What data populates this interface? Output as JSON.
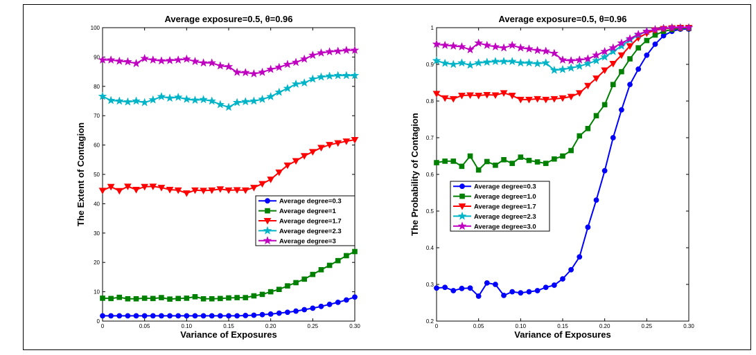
{
  "chart_data": [
    {
      "type": "line",
      "title": "Average exposure=0.5, θ=0.96",
      "xlabel": "Variance of Exposures",
      "ylabel": "The Extent of Contagion",
      "xlim": [
        0,
        0.3
      ],
      "ylim": [
        0,
        100
      ],
      "xticks": [
        "0",
        "0.05",
        "0.10",
        "0.15",
        "0.20",
        "0.25",
        "0.30"
      ],
      "yticks": [
        "0",
        "10",
        "20",
        "30",
        "40",
        "50",
        "60",
        "70",
        "80",
        "90",
        "100"
      ],
      "legend_position": "right",
      "x": [
        0,
        0.01,
        0.02,
        0.03,
        0.04,
        0.05,
        0.06,
        0.07,
        0.08,
        0.09,
        0.1,
        0.11,
        0.12,
        0.13,
        0.14,
        0.15,
        0.16,
        0.17,
        0.18,
        0.19,
        0.2,
        0.21,
        0.22,
        0.23,
        0.24,
        0.25,
        0.26,
        0.27,
        0.28,
        0.29,
        0.3
      ],
      "series": [
        {
          "name": "Average degree=0.3",
          "color": "#0000ff",
          "marker": "circle",
          "values": [
            1.8,
            1.8,
            1.8,
            1.8,
            1.8,
            1.8,
            1.8,
            1.8,
            1.8,
            1.8,
            1.8,
            1.8,
            1.8,
            1.8,
            1.8,
            1.8,
            1.8,
            1.9,
            2.0,
            2.2,
            2.4,
            2.7,
            3.0,
            3.4,
            3.9,
            4.4,
            5.0,
            5.7,
            6.4,
            7.2,
            8.2
          ]
        },
        {
          "name": "Average degree=1",
          "color": "#008000",
          "marker": "square",
          "values": [
            7.8,
            7.7,
            8.1,
            7.6,
            7.6,
            7.8,
            7.7,
            8.0,
            7.5,
            7.7,
            7.8,
            8.3,
            7.6,
            7.6,
            7.7,
            7.9,
            8.0,
            8.0,
            8.6,
            9.1,
            10.0,
            10.8,
            12.0,
            13.1,
            14.3,
            15.9,
            17.5,
            19.0,
            20.6,
            22.3,
            23.7
          ]
        },
        {
          "name": "Average degree=1.7",
          "color": "#ff0000",
          "marker": "triangle-down",
          "values": [
            44.5,
            45.8,
            44.4,
            45.9,
            44.8,
            45.8,
            45.9,
            45.5,
            44.8,
            44.6,
            43.6,
            44.6,
            44.5,
            44.6,
            45.0,
            44.6,
            44.7,
            44.6,
            45.5,
            46.8,
            48.3,
            50.7,
            53.1,
            54.6,
            56.3,
            57.7,
            59.1,
            60.1,
            60.7,
            61.3,
            61.8
          ]
        },
        {
          "name": "Average degree=2.3",
          "color": "#00b4c8",
          "marker": "star",
          "values": [
            76.6,
            75.2,
            75.0,
            74.7,
            75.0,
            74.5,
            75.4,
            76.5,
            76.0,
            76.3,
            75.6,
            75.3,
            75.5,
            75.0,
            73.8,
            72.9,
            74.5,
            74.8,
            75.0,
            75.6,
            76.5,
            78.0,
            79.3,
            80.8,
            81.2,
            82.5,
            83.2,
            83.5,
            83.7,
            83.7,
            83.7
          ]
        },
        {
          "name": "Average degree=3",
          "color": "#c000c0",
          "marker": "star",
          "values": [
            89.0,
            89.0,
            88.6,
            88.4,
            87.8,
            89.5,
            89.0,
            88.7,
            88.8,
            89.0,
            89.3,
            88.5,
            88.0,
            88.0,
            87.0,
            86.7,
            84.8,
            84.7,
            84.3,
            84.8,
            85.8,
            86.5,
            87.5,
            88.2,
            89.3,
            90.6,
            91.4,
            91.8,
            92.0,
            92.3,
            92.3
          ]
        }
      ]
    },
    {
      "type": "line",
      "title": "Average exposure=0.5, θ=0.96",
      "xlabel": "Variance of Exposures",
      "ylabel": "The Probability of Contagion",
      "xlim": [
        0,
        0.3
      ],
      "ylim": [
        0.2,
        1
      ],
      "xticks": [
        "0",
        "0.05",
        "0.10",
        "0.15",
        "0.20",
        "0.25",
        "0.30"
      ],
      "yticks": [
        "0.2",
        "0.3",
        "0.4",
        "0.5",
        "0.6",
        "0.7",
        "0.8",
        "0.9",
        "1"
      ],
      "legend_position": "left",
      "x": [
        0,
        0.01,
        0.02,
        0.03,
        0.04,
        0.05,
        0.06,
        0.07,
        0.08,
        0.09,
        0.1,
        0.11,
        0.12,
        0.13,
        0.14,
        0.15,
        0.16,
        0.17,
        0.18,
        0.19,
        0.2,
        0.21,
        0.22,
        0.23,
        0.24,
        0.25,
        0.26,
        0.27,
        0.28,
        0.29,
        0.3
      ],
      "series": [
        {
          "name": "Average degree=0.3",
          "color": "#0000ff",
          "marker": "circle",
          "values": [
            0.29,
            0.292,
            0.283,
            0.289,
            0.29,
            0.268,
            0.304,
            0.3,
            0.27,
            0.28,
            0.277,
            0.28,
            0.283,
            0.292,
            0.298,
            0.315,
            0.34,
            0.375,
            0.456,
            0.53,
            0.61,
            0.7,
            0.776,
            0.845,
            0.887,
            0.925,
            0.955,
            0.978,
            0.99,
            0.996,
            0.996
          ]
        },
        {
          "name": "Average degree=1.0",
          "color": "#008000",
          "marker": "square",
          "values": [
            0.632,
            0.636,
            0.636,
            0.622,
            0.65,
            0.612,
            0.635,
            0.625,
            0.64,
            0.63,
            0.647,
            0.638,
            0.634,
            0.63,
            0.642,
            0.65,
            0.665,
            0.705,
            0.725,
            0.76,
            0.79,
            0.845,
            0.88,
            0.915,
            0.945,
            0.965,
            0.98,
            0.99,
            0.995,
            0.998,
            0.998
          ]
        },
        {
          "name": "Average degree=1.7",
          "color": "#ff0000",
          "marker": "triangle-down",
          "values": [
            0.82,
            0.808,
            0.806,
            0.815,
            0.816,
            0.815,
            0.817,
            0.816,
            0.822,
            0.815,
            0.804,
            0.804,
            0.806,
            0.804,
            0.806,
            0.808,
            0.812,
            0.822,
            0.842,
            0.862,
            0.884,
            0.902,
            0.925,
            0.95,
            0.972,
            0.985,
            0.993,
            0.997,
            0.999,
            1.0,
            1.0
          ]
        },
        {
          "name": "Average degree=2.3",
          "color": "#00b4c8",
          "marker": "star",
          "values": [
            0.91,
            0.903,
            0.9,
            0.904,
            0.898,
            0.904,
            0.906,
            0.908,
            0.908,
            0.908,
            0.904,
            0.904,
            0.902,
            0.904,
            0.884,
            0.886,
            0.89,
            0.895,
            0.902,
            0.91,
            0.92,
            0.935,
            0.95,
            0.967,
            0.98,
            0.99,
            0.995,
            0.998,
            1.0,
            1.0,
            1.0
          ]
        },
        {
          "name": "Average degree=3.0",
          "color": "#c000c0",
          "marker": "star",
          "values": [
            0.955,
            0.952,
            0.95,
            0.948,
            0.94,
            0.958,
            0.952,
            0.948,
            0.945,
            0.952,
            0.945,
            0.942,
            0.938,
            0.936,
            0.93,
            0.912,
            0.91,
            0.912,
            0.915,
            0.925,
            0.935,
            0.945,
            0.958,
            0.97,
            0.982,
            0.99,
            0.995,
            0.998,
            1.0,
            1.0,
            1.0
          ]
        }
      ]
    }
  ]
}
